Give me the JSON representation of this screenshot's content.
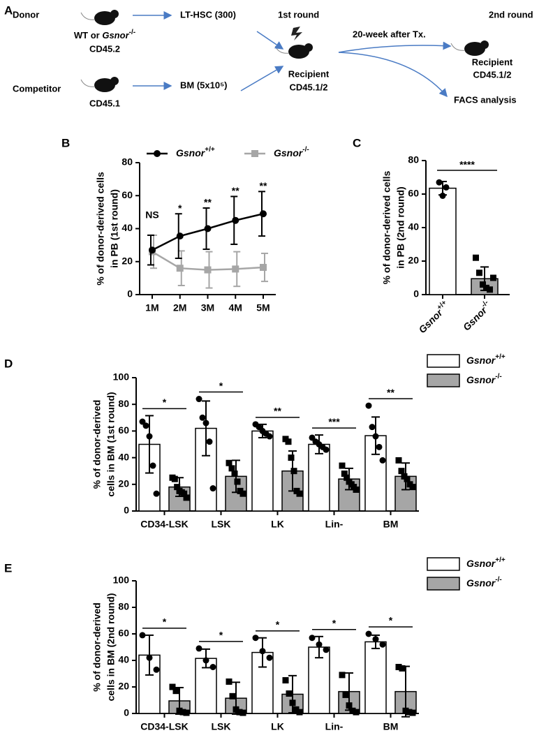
{
  "panel_labels": [
    "A",
    "B",
    "C",
    "D",
    "E"
  ],
  "diagram": {
    "donor": "Donor",
    "donor_genotype": "WT or Gsnor-/-",
    "donor_marker": "CD45.2",
    "competitor": "Competitor",
    "competitor_marker": "CD45.1",
    "lt_hsc": "LT-HSC (300)",
    "bm": "BM (5x10⁵)",
    "round1": "1st round",
    "round2": "2nd round",
    "recipient1": "Recipient",
    "recipient1_marker": "CD45.1/2",
    "interval": "20-week after Tx.",
    "recipient2": "Recipient",
    "recipient2_marker": "CD45.1/2",
    "analysis": "FACS analysis"
  },
  "chart_data": [
    {
      "type": "line",
      "y_label": [
        "% of donor-derived cells",
        "in PB (1st round)"
      ],
      "categories": [
        "1M",
        "2M",
        "3M",
        "4M",
        "5M"
      ],
      "series": [
        {
          "name": "Gsnor+/+",
          "color": "#000000",
          "marker": "circle",
          "values": [
            27,
            35.5,
            40,
            45,
            49
          ],
          "errors": [
            9,
            13.5,
            12.5,
            14.5,
            13.5
          ]
        },
        {
          "name": "Gsnor-/-",
          "color": "#a6a6a6",
          "marker": "square",
          "values": [
            26,
            16,
            15,
            15.5,
            16.5
          ],
          "errors": [
            10,
            10.5,
            11,
            10.5,
            8.5
          ]
        }
      ],
      "annotations": [
        "NS",
        "*",
        "**",
        "**",
        "**"
      ],
      "ylim": [
        0,
        80
      ],
      "yticks": [
        0,
        20,
        40,
        60,
        80
      ],
      "legend": "top"
    },
    {
      "type": "bar",
      "y_label": [
        "% of donor-derived cells",
        "in PB (2nd round)"
      ],
      "categories": [
        "Gsnor+/+",
        "Gsnor-/-"
      ],
      "colors": [
        "#ffffff",
        "#a6a6a6"
      ],
      "markers": [
        "circle",
        "square"
      ],
      "values": [
        63.5,
        9.5
      ],
      "errors": [
        4,
        7
      ],
      "points": [
        [
          67,
          59,
          64
        ],
        [
          22,
          13,
          6,
          4,
          3,
          10
        ]
      ],
      "significance": "****",
      "ylim": [
        0,
        80
      ],
      "yticks": [
        0,
        20,
        40,
        60,
        80
      ]
    },
    {
      "type": "grouped_bar",
      "y_label": [
        "% of donor-derived",
        "cells in BM (1st round)"
      ],
      "categories": [
        "CD34-LSK",
        "LSK",
        "LK",
        "Lin-",
        "BM"
      ],
      "series": [
        {
          "name": "Gsnor+/+",
          "color": "#ffffff",
          "marker": "circle",
          "values": [
            50,
            62,
            60,
            50,
            56.5
          ],
          "errors": [
            21.5,
            20.5,
            5,
            7,
            14
          ],
          "points": [
            [
              67,
              64,
              56,
              34,
              13
            ],
            [
              84,
              70,
              66,
              52,
              17
            ],
            [
              65,
              63,
              60,
              58,
              56
            ],
            [
              55,
              52,
              50,
              48,
              46
            ],
            [
              79,
              63,
              56,
              48,
              38
            ]
          ]
        },
        {
          "name": "Gsnor-/-",
          "color": "#a6a6a6",
          "marker": "square",
          "values": [
            18,
            26,
            30,
            24,
            26
          ],
          "errors": [
            7,
            12,
            15,
            8,
            10
          ],
          "points": [
            [
              25,
              24,
              18,
              15,
              14,
              13,
              10
            ],
            [
              36,
              32,
              28,
              22,
              15,
              13
            ],
            [
              54,
              52,
              40,
              30,
              15,
              13
            ],
            [
              34,
              28,
              25,
              22,
              20,
              18,
              16
            ],
            [
              38,
              30,
              26,
              24,
              20,
              18
            ]
          ]
        }
      ],
      "significance": [
        "*",
        "*",
        "**",
        "***",
        "**"
      ],
      "ylim": [
        0,
        100
      ],
      "yticks": [
        0,
        20,
        40,
        60,
        80,
        100
      ],
      "legend": "upper right"
    },
    {
      "type": "grouped_bar",
      "y_label": [
        "% of donor-derived",
        "cells in BM (2nd round)"
      ],
      "categories": [
        "CD34-LSK",
        "LSK",
        "LK",
        "Lin-",
        "BM"
      ],
      "series": [
        {
          "name": "Gsnor+/+",
          "color": "#ffffff",
          "marker": "circle",
          "values": [
            44,
            41.5,
            46,
            50,
            54
          ],
          "errors": [
            15,
            7,
            11,
            8,
            5
          ],
          "points": [
            [
              59,
              42,
              33
            ],
            [
              49,
              40,
              35
            ],
            [
              57,
              47,
              42
            ],
            [
              57,
              52,
              48
            ],
            [
              60,
              56,
              52
            ]
          ]
        },
        {
          "name": "Gsnor-/-",
          "color": "#a6a6a6",
          "marker": "square",
          "values": [
            9.5,
            11.5,
            14.5,
            16.5,
            16.5
          ],
          "errors": [
            10,
            12,
            14,
            14,
            19
          ],
          "points": [
            [
              20,
              17,
              2,
              1,
              0.5
            ],
            [
              24,
              13,
              3,
              1,
              0.5
            ],
            [
              25,
              15,
              8,
              3,
              1
            ],
            [
              29,
              14,
              6,
              2,
              1
            ],
            [
              35,
              34,
              2,
              1,
              0.5
            ]
          ]
        }
      ],
      "significance": [
        "*",
        "*",
        "*",
        "*",
        "*"
      ],
      "ylim": [
        0,
        100
      ],
      "yticks": [
        0,
        20,
        40,
        60,
        80,
        100
      ],
      "legend": "upper right"
    }
  ]
}
